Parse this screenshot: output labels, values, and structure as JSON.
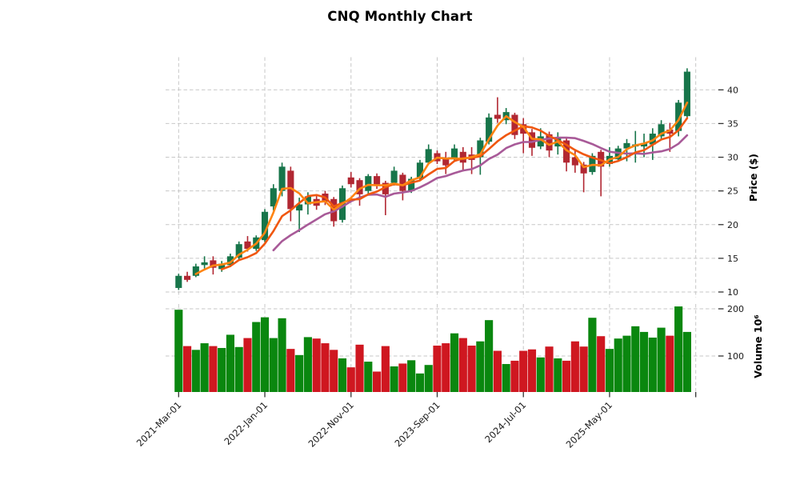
{
  "chart_data": {
    "type": "candlestick",
    "title": "CNQ Monthly Chart",
    "ylabel": "Price ($)",
    "volume_label": "Volume 10⁶",
    "legend_position": "none",
    "grid": true,
    "price_ticks": [
      10,
      15,
      20,
      25,
      30,
      35,
      40
    ],
    "volume_ticks": [
      100,
      200
    ],
    "price_range": [
      9.2,
      44.8
    ],
    "x_ticks": [
      {
        "index": 0,
        "label": "2021-Mar-01"
      },
      {
        "index": 10,
        "label": "2022-Jan-01"
      },
      {
        "index": 20,
        "label": "2022-Nov-01"
      },
      {
        "index": 30,
        "label": "2023-Sep-01"
      },
      {
        "index": 40,
        "label": "2024-Jul-01"
      },
      {
        "index": 50,
        "label": "2025-May-01"
      },
      {
        "index": 60,
        "label": ""
      }
    ],
    "mav_windows": [
      3,
      6,
      12
    ],
    "months": [
      "2021-03",
      "2021-04",
      "2021-05",
      "2021-06",
      "2021-07",
      "2021-08",
      "2021-09",
      "2021-10",
      "2021-11",
      "2021-12",
      "2022-01",
      "2022-02",
      "2022-03",
      "2022-04",
      "2022-05",
      "2022-06",
      "2022-07",
      "2022-08",
      "2022-09",
      "2022-10",
      "2022-11",
      "2022-12",
      "2023-01",
      "2023-02",
      "2023-03",
      "2023-04",
      "2023-05",
      "2023-06",
      "2023-07",
      "2023-08",
      "2023-09",
      "2023-10",
      "2023-11",
      "2023-12",
      "2024-01",
      "2024-02",
      "2024-03",
      "2024-04",
      "2024-05",
      "2024-06",
      "2024-07",
      "2024-08",
      "2024-09",
      "2024-10",
      "2024-11",
      "2024-12",
      "2025-01",
      "2025-02",
      "2025-03",
      "2025-04",
      "2025-05",
      "2025-06",
      "2025-07",
      "2025-08",
      "2025-09",
      "2025-10",
      "2025-11",
      "2025-12",
      "2026-01",
      "2026-02"
    ],
    "ohlc": [
      [
        10.6,
        12.7,
        10.3,
        12.4
      ],
      [
        12.4,
        13.0,
        11.5,
        11.8
      ],
      [
        12.4,
        14.2,
        12.2,
        13.8
      ],
      [
        14.0,
        15.3,
        13.5,
        14.4
      ],
      [
        14.7,
        15.3,
        12.6,
        13.6
      ],
      [
        13.4,
        14.6,
        13.0,
        14.2
      ],
      [
        14.0,
        15.7,
        13.7,
        15.3
      ],
      [
        15.1,
        17.5,
        14.8,
        17.1
      ],
      [
        17.5,
        18.3,
        16.0,
        16.4
      ],
      [
        16.4,
        18.4,
        16.1,
        18.1
      ],
      [
        17.7,
        22.3,
        17.4,
        21.9
      ],
      [
        22.7,
        26.0,
        22.1,
        25.4
      ],
      [
        25.0,
        29.2,
        24.2,
        28.6
      ],
      [
        28.0,
        28.6,
        20.5,
        22.3
      ],
      [
        22.1,
        24.0,
        18.9,
        23.0
      ],
      [
        23.0,
        24.8,
        21.5,
        24.2
      ],
      [
        23.8,
        24.5,
        22.2,
        22.8
      ],
      [
        24.6,
        25.0,
        22.9,
        23.4
      ],
      [
        23.8,
        24.1,
        19.7,
        20.5
      ],
      [
        20.7,
        25.8,
        20.3,
        25.4
      ],
      [
        27.0,
        27.8,
        25.5,
        26.0
      ],
      [
        26.6,
        26.9,
        22.8,
        24.5
      ],
      [
        25.0,
        27.5,
        24.6,
        27.2
      ],
      [
        27.2,
        27.6,
        25.3,
        25.8
      ],
      [
        26.2,
        26.5,
        21.4,
        24.5
      ],
      [
        26.2,
        28.6,
        25.8,
        28.0
      ],
      [
        27.4,
        27.7,
        23.6,
        25.0
      ],
      [
        25.0,
        27.1,
        24.7,
        26.8
      ],
      [
        26.8,
        29.6,
        26.5,
        29.2
      ],
      [
        29.2,
        31.9,
        28.9,
        31.2
      ],
      [
        30.6,
        31.0,
        29.0,
        29.4
      ],
      [
        29.8,
        30.8,
        27.5,
        28.8
      ],
      [
        29.8,
        31.9,
        29.4,
        31.3
      ],
      [
        30.8,
        31.5,
        27.9,
        29.2
      ],
      [
        30.4,
        31.5,
        27.5,
        29.6
      ],
      [
        30.0,
        32.9,
        27.4,
        32.5
      ],
      [
        32.3,
        36.5,
        31.9,
        35.9
      ],
      [
        36.3,
        38.9,
        35.1,
        35.7
      ],
      [
        35.5,
        37.3,
        34.9,
        36.7
      ],
      [
        36.3,
        36.6,
        32.7,
        33.3
      ],
      [
        34.9,
        35.8,
        30.6,
        33.5
      ],
      [
        33.7,
        34.2,
        30.2,
        31.4
      ],
      [
        31.6,
        34.3,
        31.2,
        33.1
      ],
      [
        33.4,
        33.8,
        30.0,
        31.0
      ],
      [
        31.6,
        33.7,
        30.4,
        32.9
      ],
      [
        32.5,
        32.9,
        27.9,
        29.2
      ],
      [
        30.0,
        31.2,
        27.7,
        28.8
      ],
      [
        28.9,
        29.3,
        24.8,
        27.6
      ],
      [
        27.8,
        30.6,
        27.4,
        30.2
      ],
      [
        30.8,
        31.1,
        24.2,
        28.6
      ],
      [
        29.0,
        31.5,
        28.6,
        30.2
      ],
      [
        29.7,
        31.7,
        29.3,
        31.3
      ],
      [
        31.3,
        32.7,
        29.4,
        32.1
      ],
      [
        31.6,
        33.9,
        29.2,
        31.9
      ],
      [
        31.6,
        33.5,
        30.0,
        32.1
      ],
      [
        31.9,
        34.3,
        29.6,
        33.5
      ],
      [
        33.1,
        35.5,
        32.5,
        34.9
      ],
      [
        34.1,
        35.1,
        30.8,
        33.5
      ],
      [
        33.9,
        38.5,
        33.1,
        38.1
      ],
      [
        36.1,
        43.2,
        35.7,
        42.7
      ]
    ],
    "volume_millions": [
      198,
      121,
      113,
      127,
      121,
      117,
      145,
      119,
      138,
      172,
      182,
      138,
      180,
      115,
      102,
      140,
      137,
      127,
      113,
      95,
      76,
      124,
      88,
      67,
      121,
      78,
      84,
      91,
      63,
      81,
      122,
      127,
      148,
      138,
      122,
      131,
      176,
      111,
      83,
      90,
      111,
      114,
      97,
      120,
      95,
      90,
      131,
      120,
      181,
      142,
      115,
      137,
      143,
      163,
      151,
      139,
      160,
      143,
      205,
      151
    ],
    "colors": {
      "up": "#17754a",
      "down": "#b12732",
      "volume_up": "#0a870f",
      "volume_down": "#cf1720",
      "mav3": "#ff8412",
      "mav6": "#f0570f",
      "mav12": "#a85a98",
      "grid": "#c7c7c7",
      "tick_text": "#1a1a1a",
      "background": "#ffffff"
    }
  }
}
